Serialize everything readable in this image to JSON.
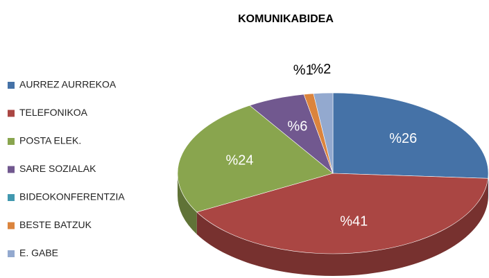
{
  "chart_data": {
    "type": "pie",
    "title": "KOMUNIKABIDEA",
    "categories": [
      "AURREZ AURREKOA",
      "TELEFONIKOA",
      "POSTA ELEK.",
      "SARE SOZIALAK",
      "BIDEOKONFERENTZIA",
      "BESTE BATZUK",
      "E. GABE"
    ],
    "values": [
      26,
      41,
      24,
      6,
      0,
      1,
      2
    ],
    "value_labels": [
      "%26",
      "%41",
      "%24",
      "%6",
      null,
      "%1",
      "%2"
    ],
    "colors": [
      "#4572a7",
      "#aa4643",
      "#89a54e",
      "#71588f",
      "#4198af",
      "#db843d",
      "#93a9cf"
    ],
    "legend": "left"
  }
}
